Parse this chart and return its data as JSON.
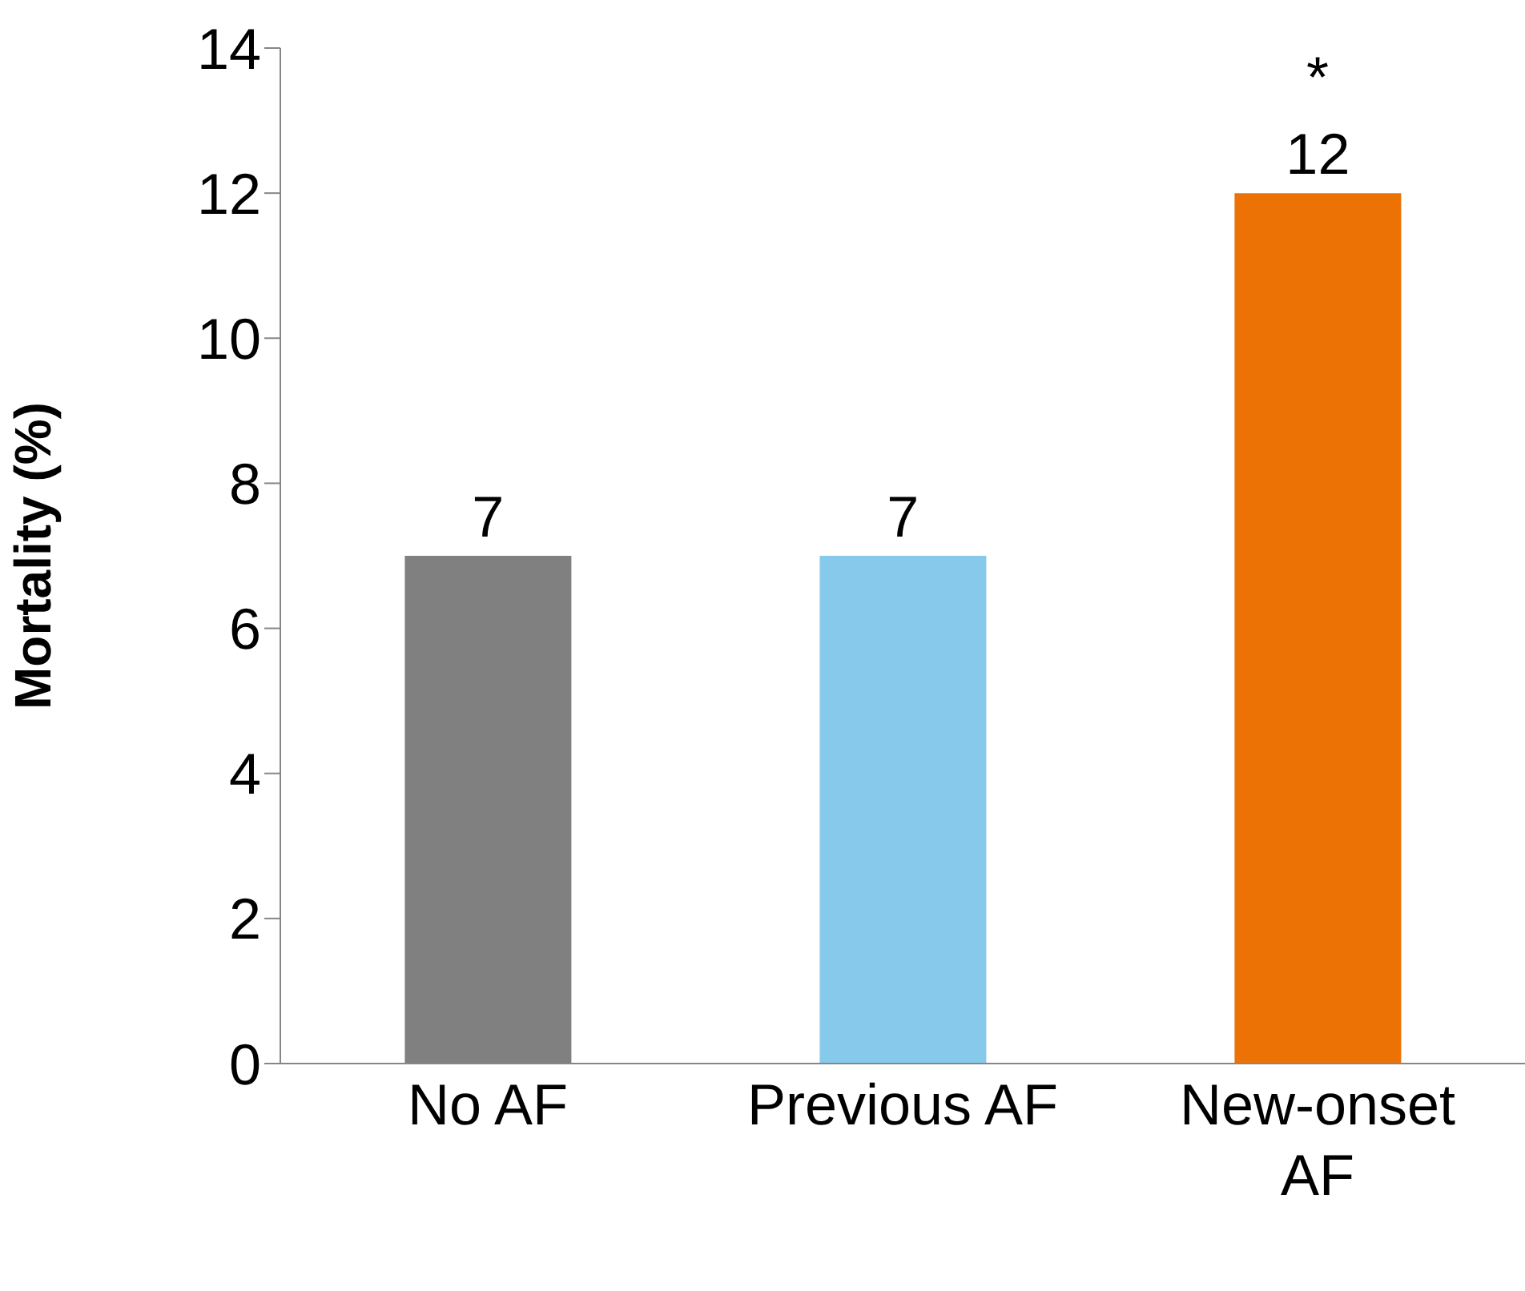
{
  "chart_data": {
    "type": "bar",
    "ylabel": "Mortality (%)",
    "categories": [
      "No AF",
      "Previous AF",
      "New-onset AF"
    ],
    "values": [
      7,
      7,
      12
    ],
    "colors": [
      "#808080",
      "#87c9eb",
      "#ec7206"
    ],
    "ylim": [
      0,
      14
    ],
    "yticks": [
      0,
      2,
      4,
      6,
      8,
      10,
      12,
      14
    ],
    "data_labels": true,
    "grid": false,
    "legend": false,
    "annotations": [
      {
        "text": "*",
        "x": "New-onset AF",
        "y": 12
      }
    ]
  }
}
